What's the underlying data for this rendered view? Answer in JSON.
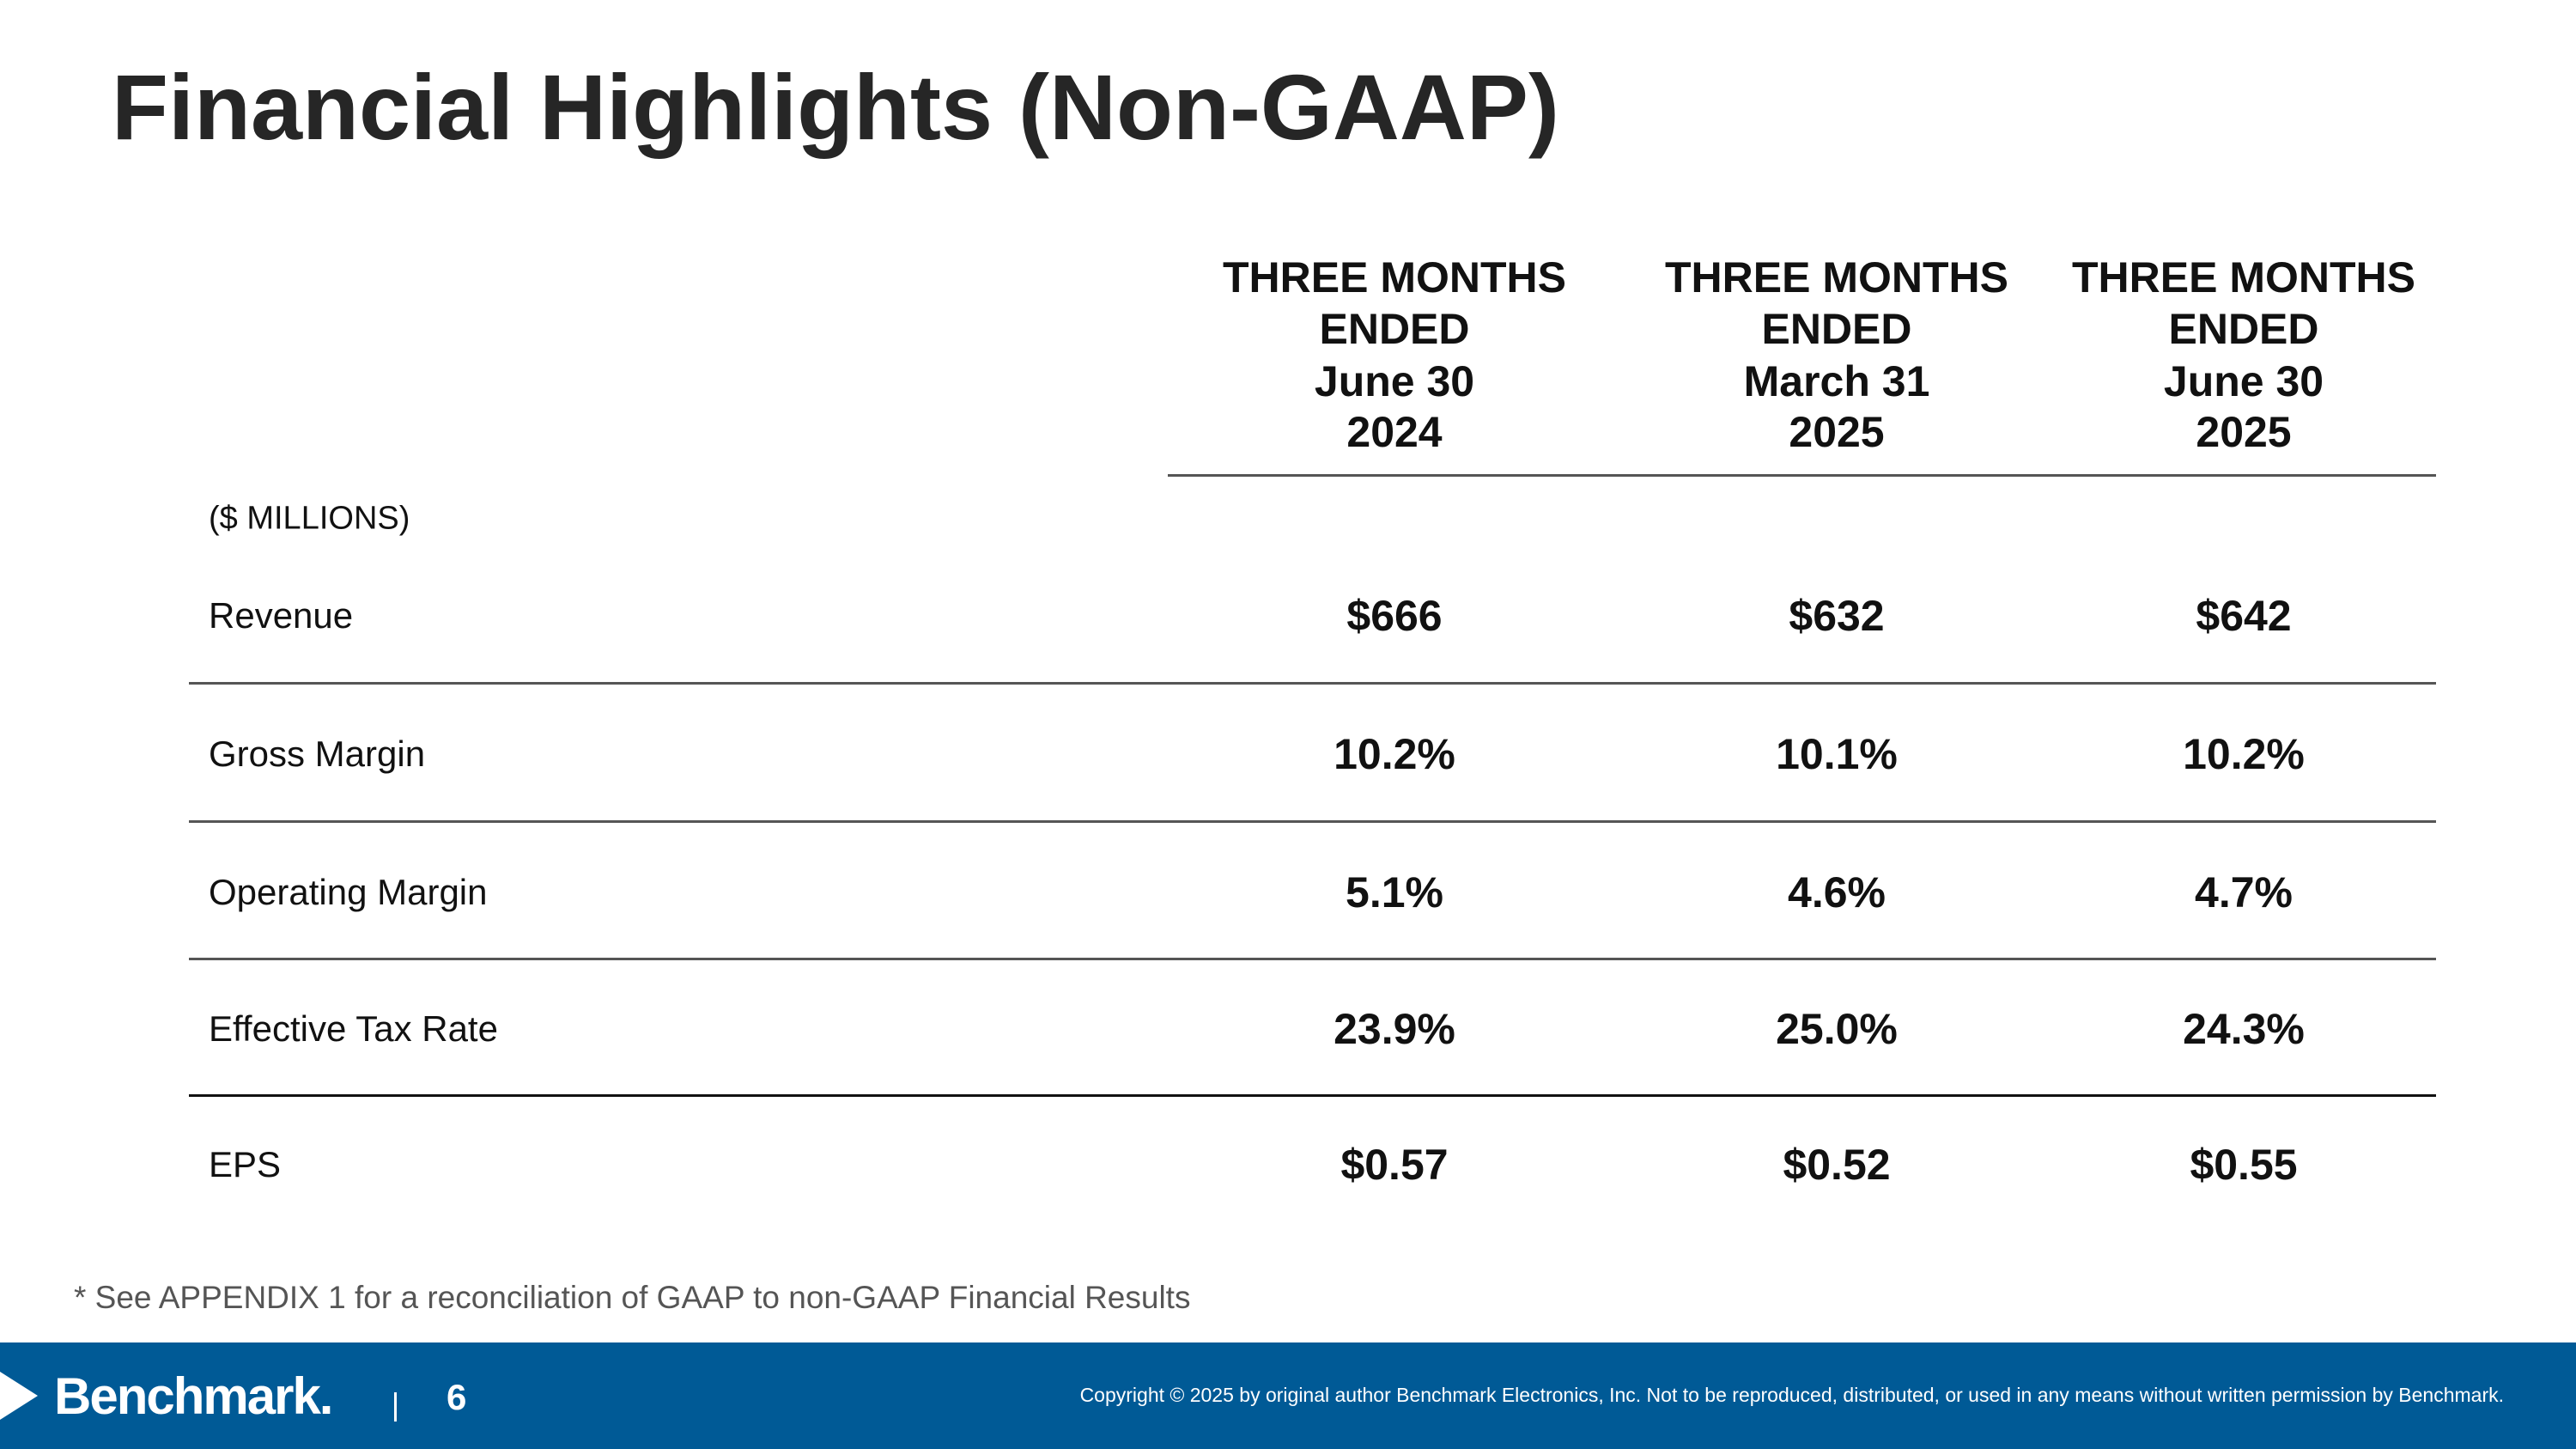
{
  "header": {
    "title": "Financial Highlights (Non-GAAP)"
  },
  "table": {
    "column_headers": [
      [
        "THREE MONTHS",
        "ENDED",
        "June 30",
        "2024"
      ],
      [
        "THREE MONTHS",
        "ENDED",
        "March 31",
        "2025"
      ],
      [
        "THREE MONTHS",
        "ENDED",
        "June 30",
        "2025"
      ]
    ],
    "units": "($ MILLIONS)",
    "rows": [
      {
        "label": "Revenue",
        "values": [
          "$666",
          "$632",
          "$642"
        ]
      },
      {
        "label": "Gross Margin",
        "values": [
          "10.2%",
          "10.1%",
          "10.2%"
        ]
      },
      {
        "label": "Operating Margin",
        "values": [
          "5.1%",
          "4.6%",
          "4.7%"
        ]
      },
      {
        "label": "Effective Tax Rate",
        "values": [
          "23.9%",
          "25.0%",
          "24.3%"
        ]
      },
      {
        "label": "EPS",
        "values": [
          "$0.57",
          "$0.52",
          "$0.55"
        ]
      }
    ]
  },
  "footnote": "* See APPENDIX 1 for a reconciliation of GAAP to non-GAAP Financial Results",
  "footer": {
    "logo": "Benchmark.",
    "page_number": "6",
    "copyright": "Copyright © 2025 by original author Benchmark Electronics, Inc. Not to be reproduced, distributed, or used in any means without written permission by Benchmark."
  }
}
